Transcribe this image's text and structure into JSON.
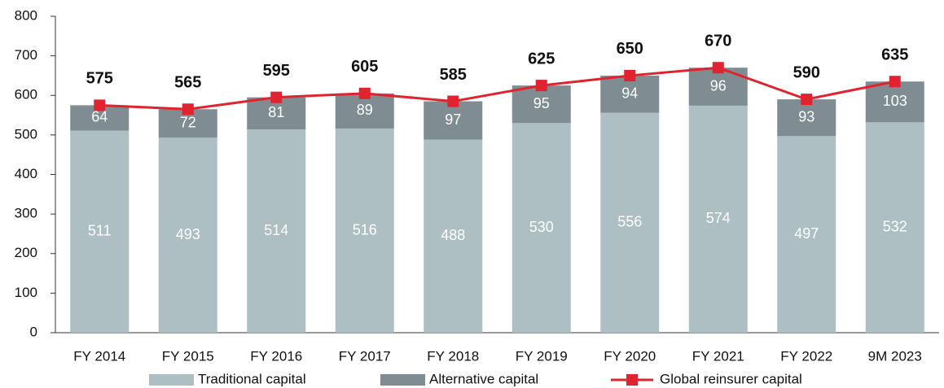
{
  "chart_data": {
    "type": "bar",
    "stacked": true,
    "categories": [
      "FY 2014",
      "FY 2015",
      "FY 2016",
      "FY 2017",
      "FY 2018",
      "FY 2019",
      "FY 2020",
      "FY 2021",
      "FY 2022",
      "9M 2023"
    ],
    "series": [
      {
        "name": "Traditional capital",
        "type": "bar",
        "color": "#adbfc3",
        "values": [
          511,
          493,
          514,
          516,
          488,
          530,
          556,
          574,
          497,
          532
        ]
      },
      {
        "name": "Alternative capital",
        "type": "bar",
        "color": "#7f8c91",
        "values": [
          64,
          72,
          81,
          89,
          97,
          95,
          94,
          96,
          93,
          103
        ]
      },
      {
        "name": "Global reinsurer capital",
        "type": "line",
        "color": "#e0232f",
        "values": [
          575,
          565,
          595,
          605,
          585,
          625,
          650,
          670,
          590,
          635
        ]
      }
    ],
    "ylim": [
      0,
      800
    ],
    "yticks": [
      0,
      100,
      200,
      300,
      400,
      500,
      600,
      700,
      800
    ],
    "grid": false,
    "legend": "bottom"
  }
}
